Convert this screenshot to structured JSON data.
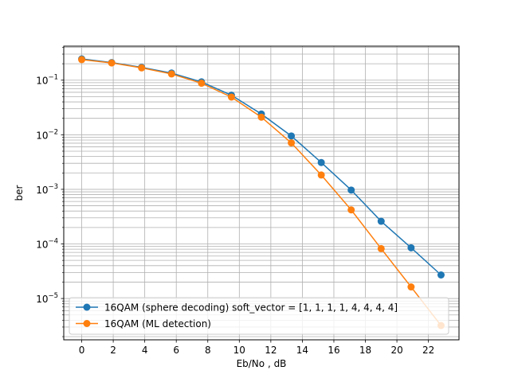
{
  "chart_data": {
    "type": "line",
    "title": "",
    "xlabel": "Eb/No , dB",
    "ylabel": "ber",
    "xlim": [
      -1.14,
      23.94
    ],
    "ylim": [
      1.75e-06,
      0.42
    ],
    "yscale": "log",
    "xticks": [
      0,
      2,
      4,
      6,
      8,
      10,
      12,
      14,
      16,
      18,
      20,
      22
    ],
    "yticks": [
      1e-05,
      0.0001,
      0.001,
      0.01,
      0.1
    ],
    "ytick_labels": [
      {
        "base": "10",
        "exp": "−5"
      },
      {
        "base": "10",
        "exp": "−4"
      },
      {
        "base": "10",
        "exp": "−3"
      },
      {
        "base": "10",
        "exp": "−2"
      },
      {
        "base": "10",
        "exp": "−1"
      }
    ],
    "grid": true,
    "minor_grid_y": true,
    "legend_position": "lower-left",
    "x": [
      0,
      1.9,
      3.8,
      5.7,
      7.6,
      9.5,
      11.4,
      13.3,
      15.2,
      17.1,
      19.0,
      20.9,
      22.8
    ],
    "series": [
      {
        "name": "16QAM (sphere decoding) soft_vector = [1, 1, 1, 1, 4, 4, 4, 4]",
        "color": "#1f77b4",
        "values": [
          0.245,
          0.21,
          0.172,
          0.135,
          0.093,
          0.053,
          0.024,
          0.0095,
          0.0031,
          0.00097,
          0.00026,
          8.5e-05,
          2.7e-05
        ]
      },
      {
        "name": "16QAM (ML detection)",
        "color": "#ff7f0e",
        "values": [
          0.238,
          0.207,
          0.168,
          0.13,
          0.088,
          0.049,
          0.021,
          0.0071,
          0.00183,
          0.00042,
          8.2e-05,
          1.63e-05,
          3.2e-06
        ]
      }
    ]
  }
}
